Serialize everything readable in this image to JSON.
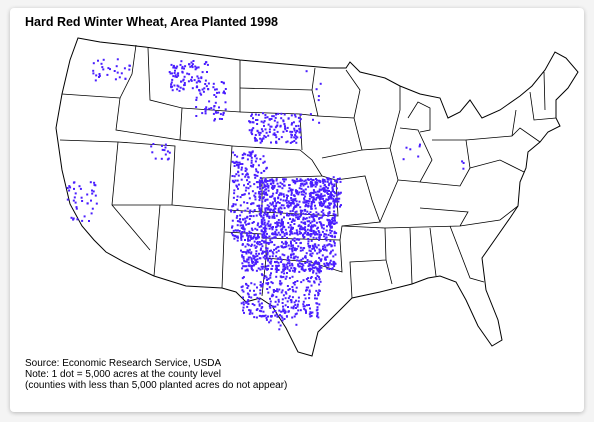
{
  "title": "Hard Red Winter Wheat, Area Planted 1998",
  "notes": [
    "Source: Economic Research Service, USDA",
    "Note: 1 dot = 5,000 acres at the county level",
    "(counties with less than 5,000 planted acres do not appear)"
  ]
}
